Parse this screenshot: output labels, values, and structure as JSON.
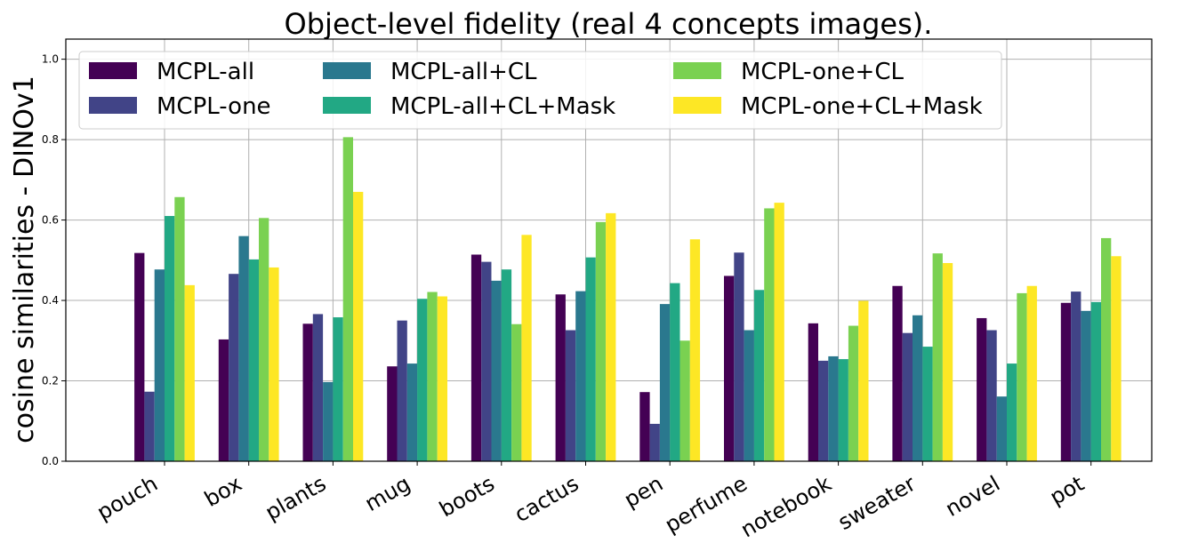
{
  "chart_data": {
    "type": "bar",
    "title": "Object-level fidelity (real 4 concepts images).",
    "xlabel": "",
    "ylabel": "cosine similarities - DINOv1",
    "ylim": [
      0,
      1.05
    ],
    "yticks": [
      0.0,
      0.2,
      0.4,
      0.6,
      0.8,
      1.0
    ],
    "ytick_labels": [
      "0.0",
      "0.2",
      "0.4",
      "0.6",
      "0.8",
      "1.0"
    ],
    "grid": true,
    "legend_position": "top-left",
    "categories": [
      "pouch",
      "box",
      "plants",
      "mug",
      "boots",
      "cactus",
      "pen",
      "perfume",
      "notebook",
      "sweater",
      "novel",
      "pot"
    ],
    "series": [
      {
        "name": "MCPL-all",
        "color": "#440154",
        "values": [
          0.518,
          0.303,
          0.342,
          0.236,
          0.514,
          0.415,
          0.172,
          0.461,
          0.343,
          0.436,
          0.356,
          0.394
        ]
      },
      {
        "name": "MCPL-one",
        "color": "#414487",
        "values": [
          0.173,
          0.466,
          0.366,
          0.35,
          0.496,
          0.326,
          0.093,
          0.519,
          0.25,
          0.319,
          0.326,
          0.422
        ]
      },
      {
        "name": "MCPL-all+CL",
        "color": "#2a788e",
        "values": [
          0.477,
          0.56,
          0.197,
          0.243,
          0.449,
          0.423,
          0.391,
          0.326,
          0.261,
          0.363,
          0.161,
          0.374
        ]
      },
      {
        "name": "MCPL-all+CL+Mask",
        "color": "#22a884",
        "values": [
          0.61,
          0.502,
          0.358,
          0.404,
          0.477,
          0.507,
          0.443,
          0.426,
          0.254,
          0.285,
          0.243,
          0.396
        ]
      },
      {
        "name": "MCPL-one+CL",
        "color": "#7ad151",
        "values": [
          0.657,
          0.605,
          0.806,
          0.421,
          0.341,
          0.595,
          0.3,
          0.629,
          0.337,
          0.517,
          0.418,
          0.555
        ]
      },
      {
        "name": "MCPL-one+CL+Mask",
        "color": "#fde725",
        "values": [
          0.438,
          0.482,
          0.67,
          0.41,
          0.563,
          0.617,
          0.552,
          0.643,
          0.399,
          0.493,
          0.436,
          0.51
        ]
      }
    ]
  }
}
